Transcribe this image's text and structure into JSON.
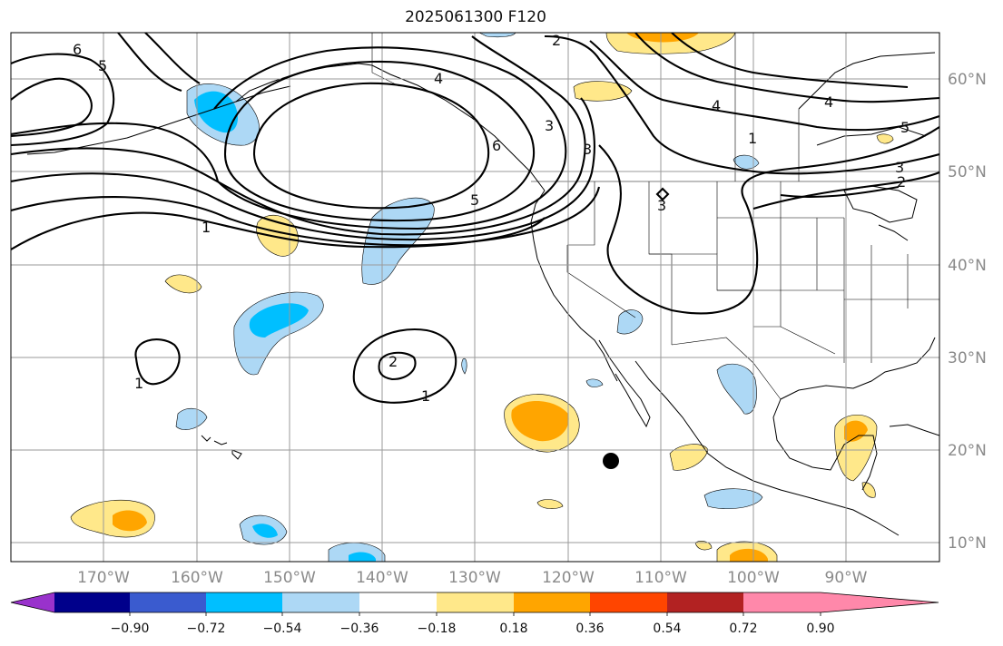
{
  "title": "2025061300 F120",
  "lat_labels": [
    "60°N",
    "50°N",
    "40°N",
    "30°N",
    "20°N",
    "10°N"
  ],
  "lon_labels": [
    "170°W",
    "160°W",
    "150°W",
    "140°W",
    "130°W",
    "120°W",
    "110°W",
    "100°W",
    "90°W"
  ],
  "colorbar": {
    "tick_labels": [
      "−0.90",
      "−0.72",
      "−0.54",
      "−0.36",
      "−0.18",
      "0.18",
      "0.36",
      "0.54",
      "0.72",
      "0.90"
    ],
    "colors": [
      "#9932cc",
      "#00008b",
      "#3a5bcf",
      "#00bfff",
      "#add8f5",
      "#ffffff",
      "#ffe88a",
      "#ffa500",
      "#ff4500",
      "#b22222",
      "#ff88aa"
    ]
  },
  "contour_labels": [
    "6",
    "5",
    "2",
    "4",
    "3",
    "6",
    "5",
    "3",
    "2",
    "4",
    "3",
    "5",
    "1",
    "1",
    "2",
    "1",
    "1",
    "3",
    "4"
  ],
  "marker": {
    "symbol": "filled-circle",
    "color": "#000000"
  }
}
